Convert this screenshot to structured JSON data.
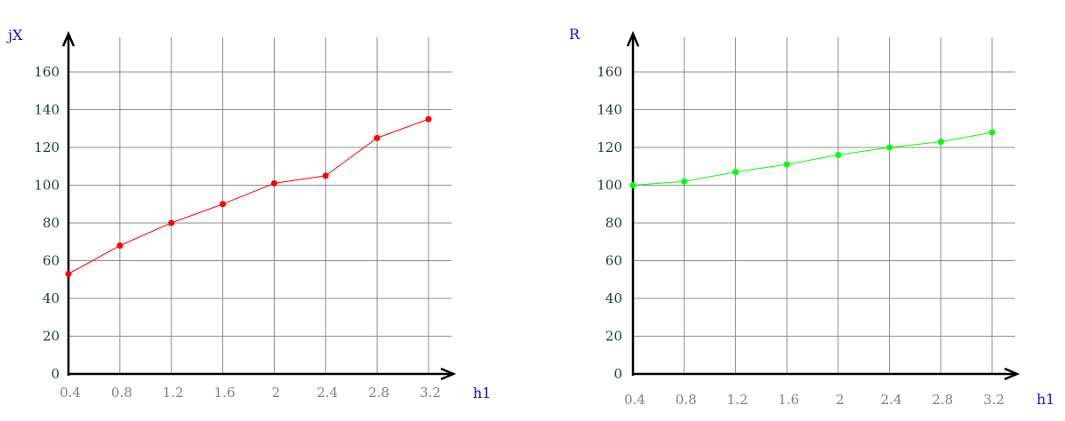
{
  "chart_data": [
    {
      "type": "line",
      "title": "",
      "ylabel": "jX",
      "xlabel": "h1",
      "x_ticks": [
        "0.4",
        "0.8",
        "1.2",
        "1.6",
        "2",
        "2.4",
        "2.8",
        "3.2"
      ],
      "y_ticks": [
        "0",
        "20",
        "40",
        "60",
        "80",
        "100",
        "120",
        "140",
        "160"
      ],
      "x": [
        0.4,
        0.8,
        1.2,
        1.6,
        2.0,
        2.4,
        2.8,
        3.2
      ],
      "series": [
        {
          "color": "#ff0000",
          "values": [
            53,
            68,
            80,
            90,
            101,
            105,
            125,
            135
          ]
        }
      ],
      "xlim": [
        0.4,
        3.2
      ],
      "ylim": [
        0,
        160
      ],
      "grid": true
    },
    {
      "type": "line",
      "title": "",
      "ylabel": "R",
      "xlabel": "h1",
      "x_ticks": [
        "0.4",
        "0.8",
        "1.2",
        "1.6",
        "2",
        "2.4",
        "2.8",
        "3.2"
      ],
      "y_ticks": [
        "0",
        "20",
        "40",
        "60",
        "80",
        "100",
        "120",
        "140",
        "160"
      ],
      "x": [
        0.4,
        0.8,
        1.2,
        1.6,
        2.0,
        2.4,
        2.8,
        3.2
      ],
      "series": [
        {
          "color": "#00ff00",
          "values": [
            100,
            102,
            107,
            111,
            116,
            120,
            123,
            128
          ]
        }
      ],
      "xlim": [
        0.4,
        3.2
      ],
      "ylim": [
        0,
        160
      ],
      "grid": true
    }
  ]
}
